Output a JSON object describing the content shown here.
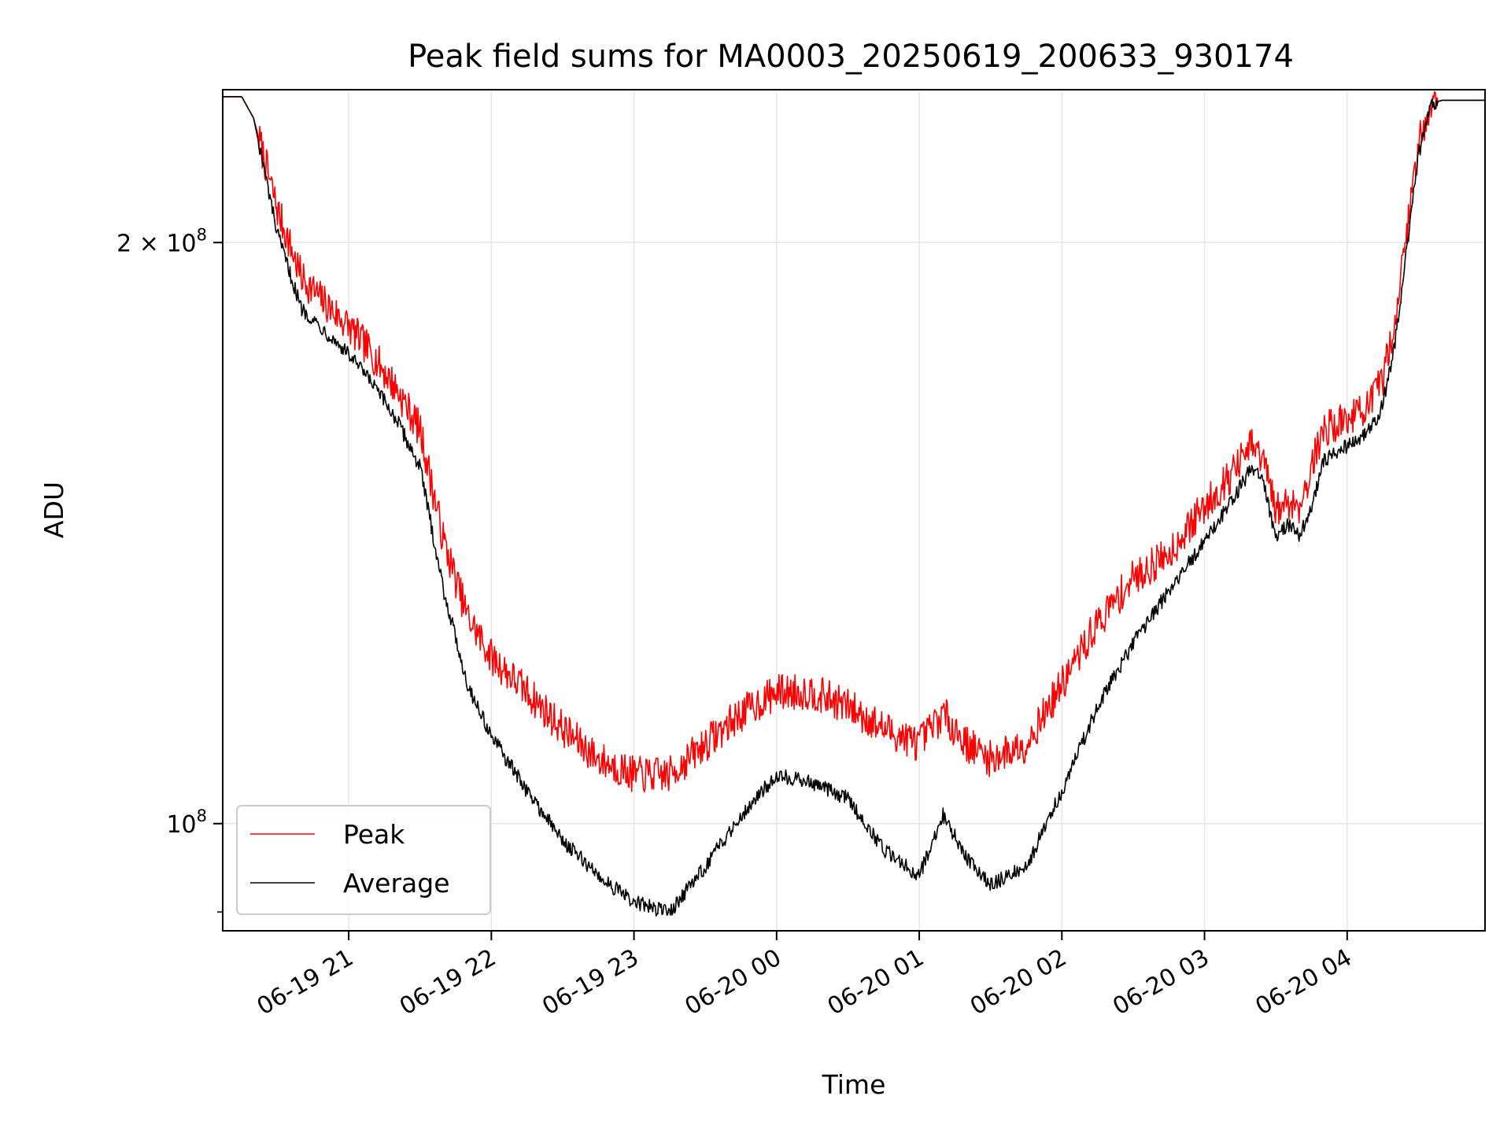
{
  "chart_data": {
    "type": "line",
    "title": "Peak field sums for MA0003_20250619_200633_930174",
    "xlabel": "Time",
    "ylabel": "ADU",
    "yscale": "log",
    "ylim": [
      88000000,
      240000000
    ],
    "xlim": [
      "2025-06-19 20:07",
      "2025-06-20 04:58"
    ],
    "x_ticks": [
      {
        "value": "2025-06-19 21:00",
        "label": "06-19 21"
      },
      {
        "value": "2025-06-19 22:00",
        "label": "06-19 22"
      },
      {
        "value": "2025-06-19 23:00",
        "label": "06-19 23"
      },
      {
        "value": "2025-06-20 00:00",
        "label": "06-20 00"
      },
      {
        "value": "2025-06-20 01:00",
        "label": "06-20 01"
      },
      {
        "value": "2025-06-20 02:00",
        "label": "06-20 02"
      },
      {
        "value": "2025-06-20 03:00",
        "label": "06-20 03"
      },
      {
        "value": "2025-06-20 04:00",
        "label": "06-20 04"
      }
    ],
    "y_ticks": [
      {
        "value": 100000000,
        "label_base": "10",
        "label_exp": "8",
        "label_coef": ""
      },
      {
        "value": 200000000,
        "label_base": "10",
        "label_exp": "8",
        "label_coef": "2 × "
      }
    ],
    "y_minor_ticks": [
      90000000
    ],
    "grid": true,
    "legend": "lower-left",
    "series": [
      {
        "name": "Peak",
        "color": "#ff0000",
        "x": [
          "2025-06-19 20:07",
          "2025-06-19 20:15",
          "2025-06-19 20:20",
          "2025-06-19 20:30",
          "2025-06-19 20:40",
          "2025-06-19 20:50",
          "2025-06-19 21:00",
          "2025-06-19 21:10",
          "2025-06-19 21:20",
          "2025-06-19 21:30",
          "2025-06-19 21:40",
          "2025-06-19 21:50",
          "2025-06-19 22:00",
          "2025-06-19 22:15",
          "2025-06-19 22:30",
          "2025-06-19 22:45",
          "2025-06-19 23:00",
          "2025-06-19 23:15",
          "2025-06-19 23:30",
          "2025-06-19 23:45",
          "2025-06-20 00:00",
          "2025-06-20 00:15",
          "2025-06-20 00:30",
          "2025-06-20 00:45",
          "2025-06-20 01:00",
          "2025-06-20 01:10",
          "2025-06-20 01:20",
          "2025-06-20 01:30",
          "2025-06-20 01:45",
          "2025-06-20 02:00",
          "2025-06-20 02:15",
          "2025-06-20 02:30",
          "2025-06-20 02:45",
          "2025-06-20 03:00",
          "2025-06-20 03:10",
          "2025-06-20 03:20",
          "2025-06-20 03:25",
          "2025-06-20 03:30",
          "2025-06-20 03:35",
          "2025-06-20 03:40",
          "2025-06-20 03:45",
          "2025-06-20 03:50",
          "2025-06-20 04:00",
          "2025-06-20 04:10",
          "2025-06-20 04:15",
          "2025-06-20 04:20",
          "2025-06-20 04:25",
          "2025-06-20 04:30",
          "2025-06-20 04:35",
          "2025-06-20 04:40",
          "2025-06-20 04:58"
        ],
        "values": [
          238000000,
          238000000,
          232000000,
          208000000,
          192000000,
          186000000,
          181000000,
          175000000,
          168000000,
          160000000,
          140000000,
          128000000,
          122000000,
          117000000,
          112000000,
          108000000,
          106000000,
          106000000,
          110000000,
          114000000,
          117000000,
          117000000,
          115000000,
          112000000,
          110000000,
          114000000,
          110000000,
          108000000,
          110000000,
          118000000,
          127000000,
          134000000,
          138000000,
          146000000,
          151000000,
          157000000,
          154000000,
          145000000,
          147000000,
          146000000,
          153000000,
          160000000,
          162000000,
          165000000,
          170000000,
          182000000,
          202000000,
          225000000,
          236000000,
          237000000,
          237000000
        ]
      },
      {
        "name": "Average",
        "color": "#000000",
        "x": [
          "2025-06-19 20:07",
          "2025-06-19 20:15",
          "2025-06-19 20:20",
          "2025-06-19 20:30",
          "2025-06-19 20:40",
          "2025-06-19 20:50",
          "2025-06-19 21:00",
          "2025-06-19 21:10",
          "2025-06-19 21:20",
          "2025-06-19 21:30",
          "2025-06-19 21:40",
          "2025-06-19 21:50",
          "2025-06-19 22:00",
          "2025-06-19 22:15",
          "2025-06-19 22:30",
          "2025-06-19 22:45",
          "2025-06-19 23:00",
          "2025-06-19 23:15",
          "2025-06-19 23:30",
          "2025-06-19 23:45",
          "2025-06-20 00:00",
          "2025-06-20 00:15",
          "2025-06-20 00:30",
          "2025-06-20 00:45",
          "2025-06-20 01:00",
          "2025-06-20 01:10",
          "2025-06-20 01:20",
          "2025-06-20 01:30",
          "2025-06-20 01:45",
          "2025-06-20 02:00",
          "2025-06-20 02:15",
          "2025-06-20 02:30",
          "2025-06-20 02:45",
          "2025-06-20 03:00",
          "2025-06-20 03:10",
          "2025-06-20 03:20",
          "2025-06-20 03:25",
          "2025-06-20 03:30",
          "2025-06-20 03:35",
          "2025-06-20 03:40",
          "2025-06-20 03:45",
          "2025-06-20 03:50",
          "2025-06-20 04:00",
          "2025-06-20 04:10",
          "2025-06-20 04:15",
          "2025-06-20 04:20",
          "2025-06-20 04:25",
          "2025-06-20 04:30",
          "2025-06-20 04:35",
          "2025-06-20 04:40",
          "2025-06-20 04:58"
        ],
        "values": [
          238000000,
          238000000,
          232000000,
          202000000,
          185000000,
          180000000,
          175000000,
          169000000,
          162000000,
          153000000,
          132000000,
          118000000,
          111000000,
          104000000,
          98000000,
          94000000,
          91000000,
          90000000,
          95000000,
          101000000,
          106000000,
          105000000,
          103000000,
          97000000,
          94000000,
          101000000,
          96000000,
          93000000,
          95000000,
          104000000,
          115000000,
          124000000,
          132000000,
          140000000,
          146000000,
          153000000,
          150000000,
          140000000,
          143000000,
          141000000,
          146000000,
          154000000,
          157000000,
          160000000,
          165000000,
          177000000,
          198000000,
          222000000,
          236000000,
          237000000,
          237000000
        ]
      }
    ]
  }
}
